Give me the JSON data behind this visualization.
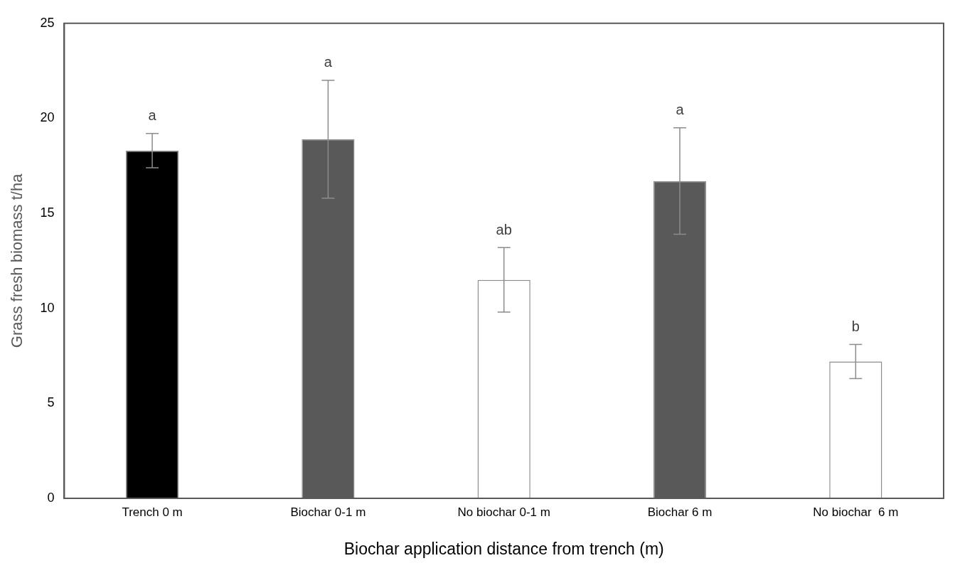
{
  "chart_data": {
    "type": "bar",
    "xlabel": "Biochar application distance from trench (m)",
    "ylabel": "Grass fresh biomass t/ha",
    "categories": [
      "Trench 0 m",
      "Biochar 0-1 m",
      "No biochar 0-1 m",
      "Biochar 6 m",
      "No biochar  6 m"
    ],
    "values": [
      18.3,
      18.9,
      11.5,
      16.7,
      7.2
    ],
    "colors": [
      "#000000",
      "#595959",
      "#ffffff",
      "#595959",
      "#ffffff"
    ],
    "errors": [
      0.9,
      3.1,
      1.7,
      2.8,
      0.9
    ],
    "ylim": [
      0,
      25
    ],
    "yticks": [
      0,
      5,
      10,
      15,
      20,
      25
    ],
    "grid": false,
    "legend": false,
    "annotations": [
      "a",
      "a",
      "ab",
      "a",
      "b"
    ]
  }
}
